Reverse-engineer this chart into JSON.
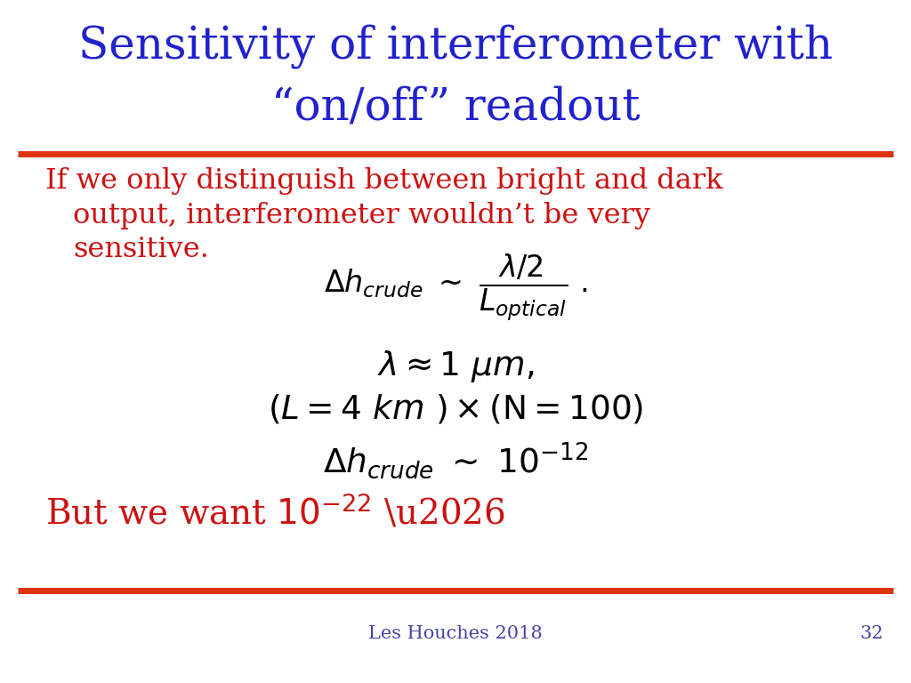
{
  "title_line1": "Sensitivity of interferometer with",
  "title_line2": "“on/off” readout",
  "title_color": "#2222cc",
  "body_text_color": "#cc1111",
  "math_color": "#000000",
  "rule_color": "#dd3311",
  "background_color": "#ffffff",
  "footer_text": "Les Houches 2018",
  "footer_page": "32",
  "footer_color": "#4444aa"
}
